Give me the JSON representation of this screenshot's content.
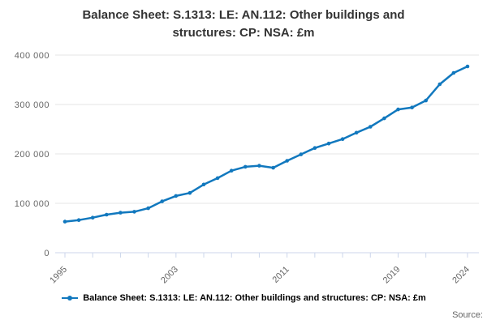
{
  "title": "Balance Sheet: S.1313: LE: AN.112: Other buildings and structures: CP: NSA: £m",
  "source_label": "Source:",
  "legend": {
    "label": "Balance Sheet: S.1313: LE: AN.112: Other buildings and structures: CP: NSA: £m",
    "marker_icon": "line-with-dot-icon"
  },
  "chart_data": {
    "type": "line",
    "title": "Balance Sheet: S.1313: LE: AN.112: Other buildings and structures: CP: NSA: £m",
    "xlabel": "",
    "ylabel": "",
    "ylim": [
      0,
      400000
    ],
    "xlim": [
      1995,
      2024
    ],
    "grid": "horizontal",
    "legend_position": "bottom",
    "line_color": "#1178be",
    "grid_color": "#e6e6e6",
    "axis_color": "#ccd6eb",
    "label_color": "#666666",
    "ytick_values": [
      0,
      100000,
      200000,
      300000,
      400000
    ],
    "ytick_labels": [
      "0",
      "100 000",
      "200 000",
      "300 000",
      "400 000"
    ],
    "xtick_years": [
      1995,
      1997,
      1999,
      2001,
      2003,
      2005,
      2007,
      2009,
      2011,
      2013,
      2015,
      2017,
      2019,
      2021,
      2024
    ],
    "xtick_labels": [
      {
        "year": 1995,
        "label": "1995"
      },
      {
        "year": 2003,
        "label": "2003"
      },
      {
        "year": 2011,
        "label": "2011"
      },
      {
        "year": 2019,
        "label": "2019"
      },
      {
        "year": 2024,
        "label": "2024"
      }
    ],
    "series": [
      {
        "name": "Balance Sheet: S.1313: LE: AN.112: Other buildings and structures: CP: NSA: £m",
        "x": [
          1995,
          1996,
          1997,
          1998,
          1999,
          2000,
          2001,
          2002,
          2003,
          2004,
          2005,
          2006,
          2007,
          2008,
          2009,
          2010,
          2011,
          2012,
          2013,
          2014,
          2015,
          2016,
          2017,
          2018,
          2019,
          2020,
          2021,
          2022,
          2023,
          2024
        ],
        "values": [
          63000,
          66000,
          71000,
          77000,
          81000,
          83000,
          90000,
          104000,
          115000,
          121000,
          138000,
          151000,
          166000,
          174000,
          176000,
          172000,
          186000,
          199000,
          212000,
          221000,
          230000,
          243000,
          255000,
          272000,
          290000,
          294000,
          308000,
          341000,
          364000,
          377000
        ]
      }
    ]
  }
}
